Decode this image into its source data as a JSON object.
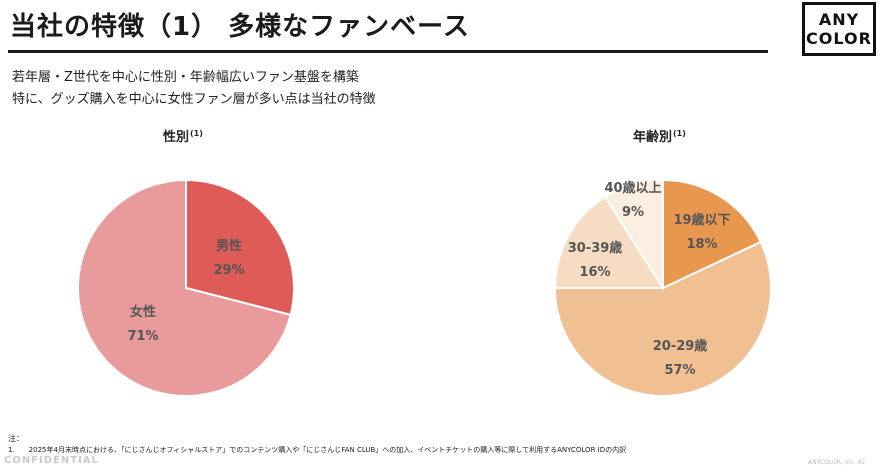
{
  "header": {
    "title": "当社の特徴（1） 多様なファンベース",
    "logo_line1": "ANY",
    "logo_line2": "COLOR"
  },
  "lead": {
    "line1": "若年層・Z世代を中心に性別・年齢幅広いファン基盤を構築",
    "line2": "特に、グッズ購入を中心に女性ファン層が多い点は当社の特徴"
  },
  "chart_data": [
    {
      "type": "pie",
      "title": "性別",
      "title_note": "(1)",
      "start_angle_deg": 0,
      "slices": [
        {
          "label": "男性",
          "value": 29,
          "value_label": "29%",
          "color": "#de5b57"
        },
        {
          "label": "女性",
          "value": 71,
          "value_label": "71%",
          "color": "#e99a9a"
        }
      ]
    },
    {
      "type": "pie",
      "title": "年齢別",
      "title_note": "(1)",
      "start_angle_deg": 0,
      "slices": [
        {
          "label": "19歳以下",
          "value": 18,
          "value_label": "18%",
          "color": "#e8984e"
        },
        {
          "label": "20-29歳",
          "value": 57,
          "value_label": "57%",
          "color": "#f0bf92"
        },
        {
          "label": "30-39歳",
          "value": 16,
          "value_label": "16%",
          "color": "#f6dcc3"
        },
        {
          "label": "40歳以上",
          "value": 9,
          "value_label": "9%",
          "color": "#fbeee1"
        }
      ]
    }
  ],
  "notes": {
    "label": "注：",
    "item1": "1.　　2025年4月末時点における、「にじさんじオフィシャルストア」でのコンテンツ購入や「にじさんじFAN CLUB」への加入、イベントチケットの購入等に際して利用するANYCOLOR IDの内訳"
  },
  "footer": {
    "confidential": "CONFIDENTIAL",
    "company": "ANYCOLOR, Inc.",
    "page": "42"
  }
}
